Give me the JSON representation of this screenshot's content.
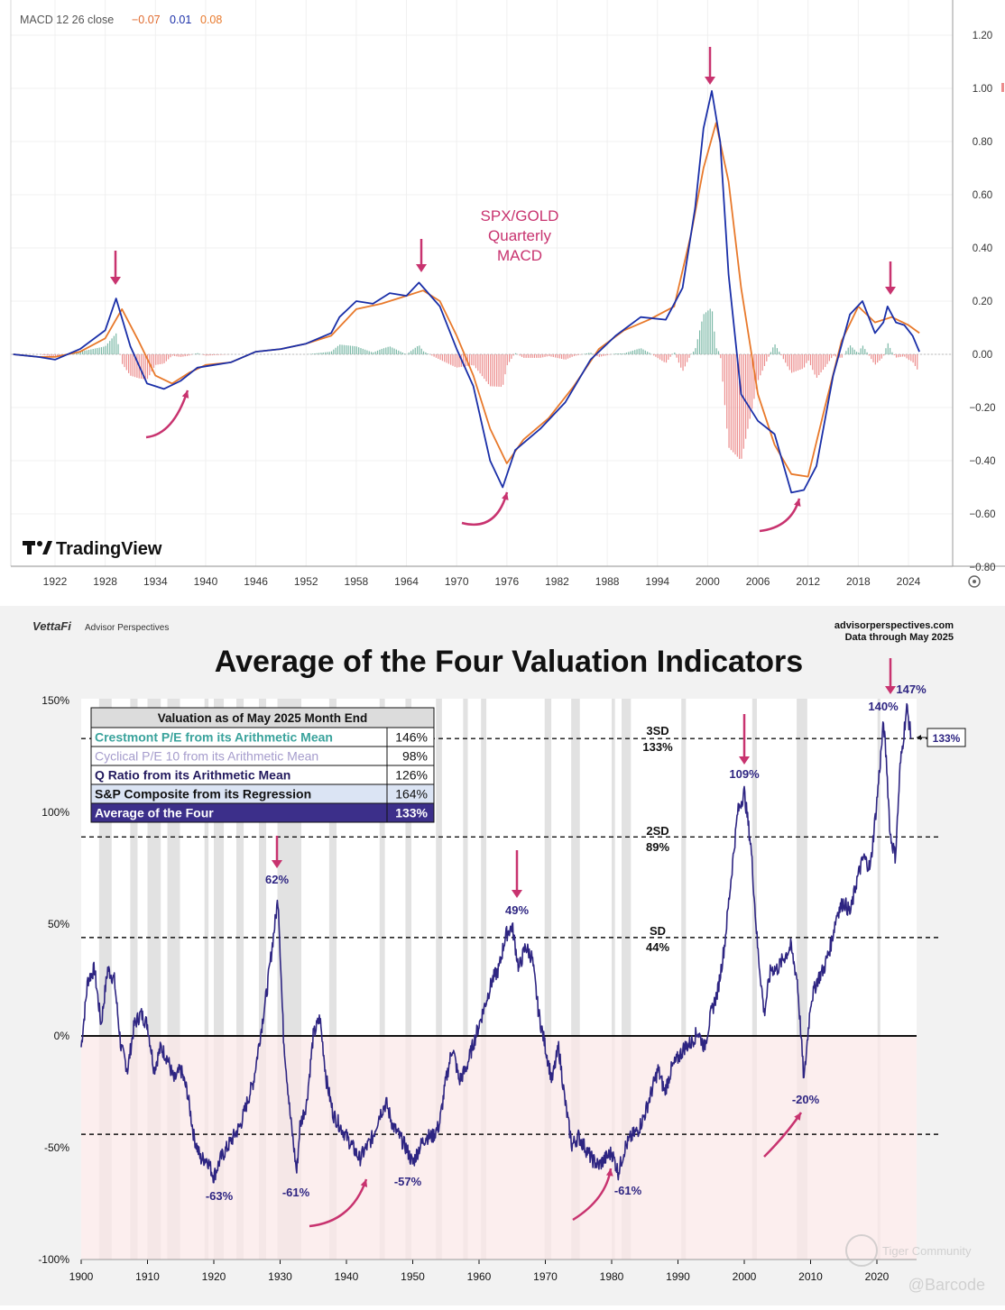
{
  "top_panel": {
    "indicator_label": "MACD 12 26 close",
    "indicator_values": [
      "−0.07",
      "0.01",
      "0.08"
    ],
    "annotation": [
      "SPX/GOLD",
      "Quarterly",
      "MACD"
    ],
    "logo_text": "TradingView",
    "colors": {
      "macd": "#1a2fa8",
      "signal": "#e8792b",
      "hist_pos": "#7ab8a6",
      "hist_neg": "#ec8c8c",
      "arrow": "#c8336f",
      "annotation": "#c8336f"
    }
  },
  "bottom_panel": {
    "brand": "VettaFi",
    "brand_sub": "Advisor Perspectives",
    "source_line1": "advisorperspectives.com",
    "source_line2": "Data through May 2025",
    "title": "Average of the Four Valuation Indicators",
    "table": {
      "header": "Valuation as of May 2025 Month End",
      "rows": [
        {
          "label": "Crestmont P/E from its Arithmetic Mean",
          "value": "146%",
          "color": "#3aa39c"
        },
        {
          "label": "Cyclical P/E 10 from its Arithmetic Mean",
          "value": "98%",
          "color": "#a59ccc"
        },
        {
          "label": "Q Ratio from its Arithmetic Mean",
          "value": "126%",
          "color": "#231a5e"
        },
        {
          "label": "S&P Composite from its Regression",
          "value": "164%",
          "color": "#111111"
        },
        {
          "label": "Average of the Four",
          "value": "133%",
          "color": "#ffffff"
        }
      ]
    },
    "sd_labels": [
      {
        "name": "3SD",
        "value": "133%"
      },
      {
        "name": "2SD",
        "value": "89%"
      },
      {
        "name": "SD",
        "value": "44%"
      }
    ],
    "current_value_label": "133%",
    "peak_labels": [
      "62%",
      "49%",
      "109%",
      "140%",
      "147%"
    ],
    "trough_labels": [
      "-63%",
      "-61%",
      "-57%",
      "-61%",
      "-20%"
    ],
    "watermark": [
      "Tiger Community",
      "@Barcode"
    ],
    "colors": {
      "line": "#2e2582",
      "arrow": "#c8336f",
      "negative_zone": "#fbe8e8",
      "recession": "#e2e2e2"
    }
  },
  "chart_data": [
    {
      "type": "line",
      "title": "",
      "xlabel": "",
      "ylabel": "",
      "x_ticks": [
        "1922",
        "1928",
        "1934",
        "1940",
        "1946",
        "1952",
        "1958",
        "1964",
        "1970",
        "1976",
        "1982",
        "1988",
        "1994",
        "2000",
        "2006",
        "2012",
        "2018",
        "2024"
      ],
      "y_ticks": [
        "1.20",
        "1.00",
        "0.80",
        "0.60",
        "0.40",
        "0.20",
        "0.00",
        "−0.20",
        "−0.40",
        "−0.60",
        "−0.80"
      ],
      "xlim": [
        1917,
        2030
      ],
      "ylim": [
        -0.8,
        1.3
      ],
      "grid": true,
      "series": [
        {
          "name": "MACD",
          "x": [
            1917,
            1920,
            1922,
            1925,
            1928,
            1929.3,
            1931,
            1933,
            1935,
            1937,
            1939,
            1941,
            1943,
            1946,
            1949,
            1952,
            1955,
            1956,
            1958,
            1960,
            1962,
            1964,
            1965.5,
            1968,
            1970,
            1972,
            1974,
            1975.5,
            1977,
            1980,
            1983,
            1986,
            1989,
            1992,
            1995,
            1997,
            1998.5,
            1999.5,
            2000.5,
            2001.5,
            2002.5,
            2004,
            2006,
            2008,
            2010,
            2011.5,
            2013,
            2015,
            2017,
            2018.5,
            2020,
            2021,
            2021.5,
            2022.5,
            2023.5,
            2024.5,
            2025.3
          ],
          "y": [
            0.0,
            -0.01,
            -0.02,
            0.02,
            0.09,
            0.21,
            0.03,
            -0.11,
            -0.13,
            -0.1,
            -0.05,
            -0.04,
            -0.03,
            0.01,
            0.02,
            0.04,
            0.08,
            0.14,
            0.2,
            0.19,
            0.23,
            0.22,
            0.27,
            0.18,
            0.02,
            -0.12,
            -0.4,
            -0.5,
            -0.36,
            -0.28,
            -0.18,
            -0.02,
            0.07,
            0.14,
            0.13,
            0.25,
            0.55,
            0.85,
            0.99,
            0.8,
            0.3,
            -0.15,
            -0.25,
            -0.3,
            -0.52,
            -0.51,
            -0.42,
            -0.08,
            0.15,
            0.2,
            0.08,
            0.12,
            0.18,
            0.12,
            0.11,
            0.07,
            0.01
          ]
        },
        {
          "name": "Signal",
          "x": [
            1917,
            1920,
            1922,
            1925,
            1928,
            1930,
            1932,
            1934,
            1936,
            1938,
            1940,
            1943,
            1946,
            1949,
            1952,
            1955,
            1958,
            1961,
            1964,
            1966,
            1968,
            1970,
            1972,
            1974,
            1976,
            1978,
            1981,
            1984,
            1987,
            1990,
            1993,
            1996,
            1998,
            1999.5,
            2001,
            2002.5,
            2004,
            2006,
            2008,
            2010,
            2012,
            2014,
            2016,
            2018,
            2020,
            2022,
            2024,
            2025.3
          ],
          "y": [
            0.0,
            -0.01,
            -0.01,
            0.01,
            0.06,
            0.17,
            0.05,
            -0.08,
            -0.11,
            -0.07,
            -0.04,
            -0.03,
            0.01,
            0.02,
            0.04,
            0.07,
            0.17,
            0.19,
            0.22,
            0.24,
            0.2,
            0.07,
            -0.08,
            -0.28,
            -0.41,
            -0.32,
            -0.24,
            -0.12,
            0.02,
            0.09,
            0.13,
            0.18,
            0.45,
            0.7,
            0.87,
            0.65,
            0.25,
            -0.15,
            -0.34,
            -0.45,
            -0.46,
            -0.2,
            0.05,
            0.18,
            0.12,
            0.14,
            0.11,
            0.08
          ]
        }
      ]
    },
    {
      "type": "line",
      "title": "Average of the Four Valuation Indicators",
      "xlabel": "",
      "ylabel": "",
      "x_ticks": [
        "1900",
        "1910",
        "1920",
        "1930",
        "1940",
        "1950",
        "1960",
        "1970",
        "1980",
        "1990",
        "2000",
        "2010",
        "2020"
      ],
      "y_ticks": [
        "150%",
        "100%",
        "50%",
        "0%",
        "-50%",
        "-100%"
      ],
      "xlim": [
        1900,
        2026
      ],
      "ylim": [
        -100,
        150
      ],
      "grid": false,
      "reference_lines": [
        133,
        89,
        44,
        0,
        -44
      ],
      "series": [
        {
          "name": "Average of the Four",
          "x": [
            1900,
            1901,
            1902,
            1903,
            1904,
            1905,
            1906,
            1907,
            1908,
            1909,
            1910,
            1911,
            1912,
            1913,
            1914,
            1915,
            1916,
            1917,
            1918,
            1919,
            1920,
            1921,
            1922,
            1923,
            1924,
            1925,
            1926,
            1927,
            1928,
            1929,
            1929.7,
            1930.5,
            1931.5,
            1932.5,
            1933,
            1934,
            1935,
            1936,
            1937,
            1938,
            1939,
            1940,
            1941,
            1942,
            1943,
            1944,
            1945,
            1946,
            1947,
            1948,
            1949,
            1950,
            1951,
            1952,
            1953,
            1954,
            1955,
            1956,
            1957,
            1958,
            1959,
            1960,
            1961,
            1962,
            1963,
            1964,
            1965,
            1966,
            1967,
            1968,
            1969,
            1970,
            1971,
            1972,
            1973,
            1974,
            1975,
            1976,
            1977,
            1978,
            1979,
            1980,
            1981,
            1982,
            1983,
            1984,
            1985,
            1986,
            1987,
            1988,
            1989,
            1990,
            1991,
            1992,
            1993,
            1994,
            1995,
            1996,
            1997,
            1998,
            1999,
            2000,
            2001,
            2002,
            2003,
            2004,
            2005,
            2006,
            2007,
            2008,
            2009,
            2010,
            2011,
            2012,
            2013,
            2014,
            2015,
            2016,
            2017,
            2018,
            2019,
            2020,
            2021,
            2021.5,
            2022,
            2022.8,
            2023.5,
            2024.5,
            2025.2
          ],
          "y": [
            -5,
            25,
            30,
            5,
            30,
            25,
            -5,
            -15,
            5,
            10,
            5,
            -15,
            -5,
            -10,
            -20,
            -15,
            -25,
            -45,
            -55,
            -55,
            -63,
            -55,
            -50,
            -45,
            -40,
            -30,
            -20,
            0,
            20,
            45,
            62,
            0,
            -35,
            -61,
            -40,
            -30,
            0,
            8,
            -20,
            -35,
            -40,
            -45,
            -50,
            -55,
            -50,
            -45,
            -35,
            -30,
            -40,
            -45,
            -50,
            -57,
            -50,
            -45,
            -45,
            -40,
            -20,
            -5,
            -20,
            -15,
            -5,
            5,
            15,
            25,
            30,
            45,
            49,
            30,
            40,
            35,
            10,
            -5,
            -20,
            -5,
            -30,
            -49,
            -45,
            -50,
            -55,
            -58,
            -55,
            -52,
            -61,
            -50,
            -45,
            -42,
            -35,
            -25,
            -15,
            -25,
            -15,
            -10,
            -5,
            -3,
            2,
            -5,
            10,
            20,
            40,
            70,
            100,
            109,
            85,
            40,
            10,
            30,
            30,
            35,
            40,
            25,
            -20,
            15,
            25,
            30,
            40,
            55,
            60,
            55,
            70,
            80,
            75,
            105,
            140,
            120,
            90,
            80,
            120,
            147,
            133
          ]
        }
      ]
    }
  ]
}
